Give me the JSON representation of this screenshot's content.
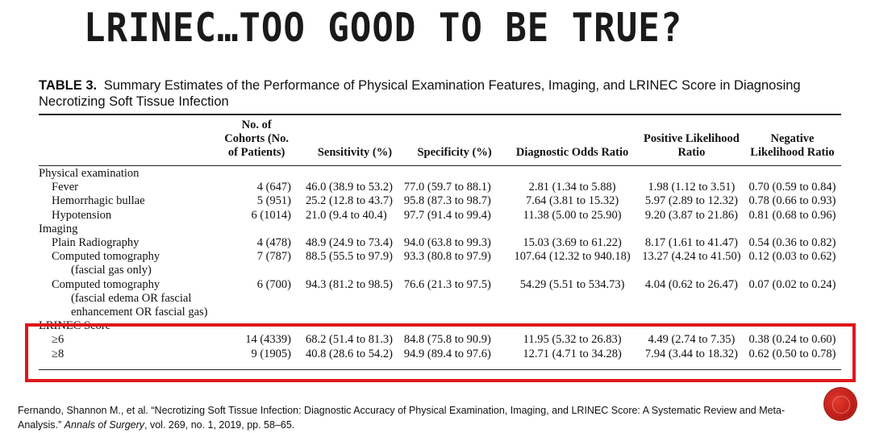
{
  "slide": {
    "title": "LRINEC…TOO GOOD TO BE TRUE?"
  },
  "table": {
    "caption_label": "TABLE 3.",
    "caption_text": "Summary Estimates of the Performance of Physical Examination Features, Imaging, and LRINEC Score in Diagnosing Necrotizing Soft Tissue Infection",
    "headers": {
      "label": "",
      "cohorts": "No. of Cohorts (No. of Patients)",
      "sensitivity": "Sensitivity (%)",
      "specificity": "Specificity (%)",
      "dor": "Diagnostic Odds Ratio",
      "plr": "Positive Likelihood Ratio",
      "nlr": "Negative Likelihood Ratio"
    },
    "sections": {
      "physical": "Physical examination",
      "imaging": "Imaging",
      "lrinec": "LRINEC Score"
    },
    "rows": {
      "fever": {
        "label": "Fever",
        "cohorts": "4 (647)",
        "sensitivity": "46.0 (38.9 to 53.2)",
        "specificity": "77.0 (59.7 to 88.1)",
        "dor": "2.81 (1.34 to 5.88)",
        "plr": "1.98 (1.12 to 3.51)",
        "nlr": "0.70 (0.59 to 0.84)"
      },
      "bullae": {
        "label": "Hemorrhagic bullae",
        "cohorts": "5 (951)",
        "sensitivity": "25.2 (12.8 to 43.7)",
        "specificity": "95.8 (87.3 to 98.7)",
        "dor": "7.64 (3.81 to 15.32)",
        "plr": "5.97 (2.89 to 12.32)",
        "nlr": "0.78 (0.66 to 0.93)"
      },
      "hypotension": {
        "label": "Hypotension",
        "cohorts": "6 (1014)",
        "sensitivity": "21.0 (9.4 to 40.4)",
        "specificity": "97.7 (91.4 to 99.4)",
        "dor": "11.38 (5.00 to 25.90)",
        "plr": "9.20 (3.87 to 21.86)",
        "nlr": "0.81 (0.68 to 0.96)"
      },
      "radiography": {
        "label": "Plain Radiography",
        "cohorts": "4 (478)",
        "sensitivity": "48.9 (24.9 to 73.4)",
        "specificity": "94.0 (63.8 to 99.3)",
        "dor": "15.03 (3.69 to 61.22)",
        "plr": "8.17 (1.61 to 41.47)",
        "nlr": "0.54 (0.36 to 0.82)"
      },
      "ct_gas": {
        "label_line1": "Computed tomography",
        "label_line2": "(fascial gas only)",
        "cohorts": "7 (787)",
        "sensitivity": "88.5 (55.5 to 97.9)",
        "specificity": "93.3 (80.8 to 97.9)",
        "dor": "107.64 (12.32 to 940.18)",
        "plr": "13.27 (4.24 to 41.50)",
        "nlr": "0.12 (0.03 to 0.62)"
      },
      "ct_edema": {
        "label_line1": "Computed tomography",
        "label_line2": "(fascial edema OR fascial",
        "label_line3": "enhancement OR fascial gas)",
        "cohorts": "6 (700)",
        "sensitivity": "94.3 (81.2 to 98.5)",
        "specificity": "76.6 (21.3 to 97.5)",
        "dor": "54.29 (5.51 to 534.73)",
        "plr": "4.04 (0.62 to 26.47)",
        "nlr": "0.07 (0.02 to 0.24)"
      },
      "lrinec6": {
        "label": "≥6",
        "cohorts": "14 (4339)",
        "sensitivity": "68.2 (51.4 to 81.3)",
        "specificity": "84.8 (75.8 to 90.9)",
        "dor": "11.95 (5.32 to 26.83)",
        "plr": "4.49 (2.74 to 7.35)",
        "nlr": "0.38 (0.24 to 0.60)"
      },
      "lrinec8": {
        "label": "≥8",
        "cohorts": "9 (1905)",
        "sensitivity": "40.8 (28.6 to 54.2)",
        "specificity": "94.9 (89.4 to 97.6)",
        "dor": "12.71 (4.71 to 34.28)",
        "plr": "7.94 (3.44 to 18.32)",
        "nlr": "0.62 (0.50 to 0.78)"
      }
    }
  },
  "citation": {
    "before_journal": "Fernando, Shannon M., et al. “Necrotizing Soft Tissue Infection: Diagnostic Accuracy of Physical Examination, Imaging, and LRINEC Score: A Systematic Review and Meta-Analysis.” ",
    "journal": "Annals of Surgery",
    "after_journal": ", vol. 269, no. 1, 2019, pp. 58–65."
  },
  "colors": {
    "highlight_border": "#e0161b",
    "badge": "#c3201a"
  },
  "icons": {
    "badge": "red-circle-badge-icon"
  }
}
